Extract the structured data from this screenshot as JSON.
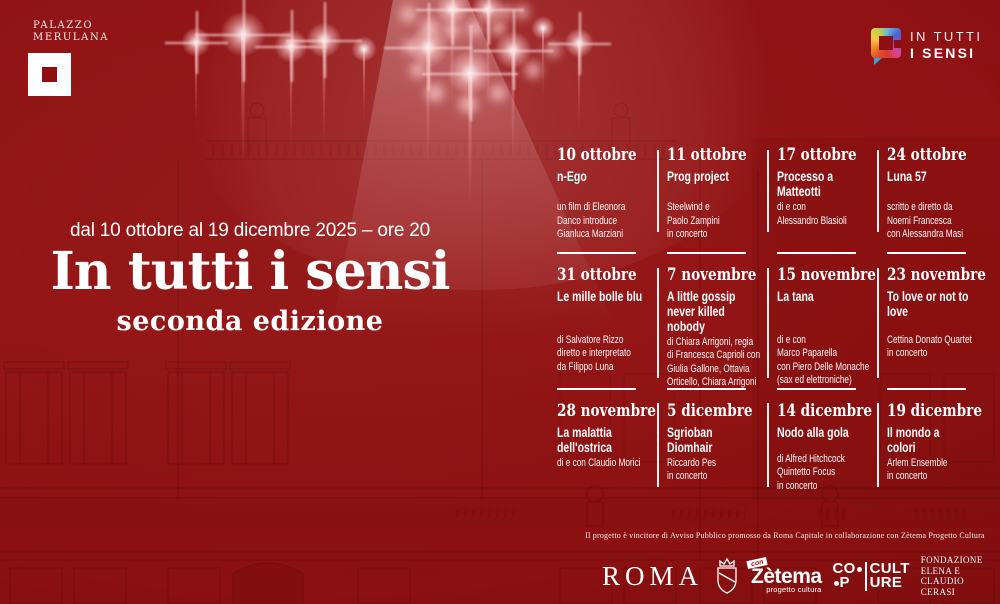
{
  "colors": {
    "background": "#911212",
    "background_dark": "#7c0e0e",
    "text": "#ffffff",
    "logo_tail_blue": "#3a9fd6"
  },
  "icons": {
    "palazzo_logo_icon": "white-square-with-red-square",
    "festival_logo_icon": "multicolor-square-speech-bubble",
    "roma_crest_icon": "shield-with-crown",
    "spotlights": "stage-light-glows"
  },
  "branding": {
    "palazzo_line1": "PALAZZO",
    "palazzo_line2": "MERULANA",
    "festival_logo_line1": "IN TUTTI",
    "festival_logo_line2": "I SENSI"
  },
  "hero": {
    "dates_line": "dal 10 ottobre al 19 dicembre 2025 – ore 20",
    "title": "In tutti i sensi",
    "subtitle": "seconda edizione"
  },
  "events": [
    {
      "date": "10 ottobre",
      "title": "n-Ego",
      "details": "un film di Eleonora\nDanco introduce\nGianluca Marziani"
    },
    {
      "date": "11 ottobre",
      "title": "Prog project",
      "details": "Steelwind e\nPaolo Zampini\nin concerto"
    },
    {
      "date": "17 ottobre",
      "title": "Processo a\nMatteotti",
      "details": "di e con\nAlessandro Blasioli"
    },
    {
      "date": "24 ottobre",
      "title": "Luna 57",
      "details": "scritto e diretto da\nNoemi Francesca\ncon Alessandra Masi"
    },
    {
      "date": "31 ottobre",
      "title": "Le mille bolle blu",
      "details": "di Salvatore Rizzo\ndiretto e interpretato\nda Filippo Luna"
    },
    {
      "date": "7 novembre",
      "title": "A little gossip\nnever killed\nnobody",
      "details": "di Chiara Arrigoni, regia\ndi Francesca Caprioli con\nGiulia Gallone, Ottavia\nOrticello, Chiara Arrigoni"
    },
    {
      "date": "15 novembre",
      "title": "La tana",
      "details": "di e con\nMarco Paparella\ncon Piero Delle Monache\n(sax ed elettroniche)"
    },
    {
      "date": "23 novembre",
      "title": "To love or not to\nlove",
      "details": "Cettina Donato Quartet\nin concerto"
    },
    {
      "date": "28 novembre",
      "title": "La malattia\ndell'ostrica",
      "details": "di e con Claudio Morici"
    },
    {
      "date": "5 dicembre",
      "title": "Sgrioban\nDiomhair",
      "details": "Riccardo Pes\nin concerto"
    },
    {
      "date": "14 dicembre",
      "title": "Nodo alla gola",
      "details": "di Alfred Hitchcock\nQuintetto Focus\nin concerto"
    },
    {
      "date": "19 dicembre",
      "title": "Il mondo a\ncolori",
      "details": "Arlem Ensemble\nin concerto"
    }
  ],
  "footer": {
    "credit_line": "Il progetto è vincitore di Avviso Pubblico promosso da Roma Capitale in collaborazione con Zètema Progetto Cultura",
    "logos": {
      "roma": "ROMA",
      "zetema_badge": "con",
      "zetema_name": "Zètema",
      "zetema_sub": "progetto cultura",
      "coop_l1": "CO",
      "coop_l2": "P",
      "coop_r1": "CULT",
      "coop_r2": "URE",
      "fondazione_line1": "FONDAZIONE",
      "fondazione_line2": "ELENA E CLAUDIO",
      "fondazione_line3": "CERASI"
    }
  }
}
